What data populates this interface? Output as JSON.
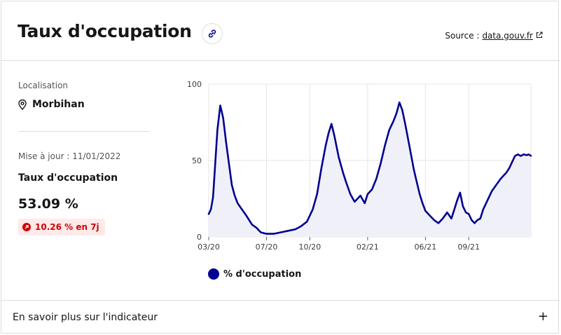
{
  "header": {
    "title": "Taux d'occupation",
    "source_prefix": "Source :",
    "source_link": "data.gouv.fr"
  },
  "location": {
    "label": "Localisation",
    "value": "Morbihan"
  },
  "update": "Mise à jour : 11/01/2022",
  "metric": {
    "name": "Taux d'occupation",
    "value": "53.09 %",
    "change": "10.26 % en 7j",
    "change_color": "#ce0500"
  },
  "footer": {
    "label": "En savoir plus sur l'indicateur",
    "toggle": "+"
  },
  "colors": {
    "line": "#000091",
    "fill": "#f0f0f8",
    "grid": "#e5e5e5"
  },
  "chart_data": {
    "type": "area",
    "xlabel": "",
    "ylabel": "",
    "ylim": [
      0,
      100
    ],
    "yticks": [
      0,
      50,
      100
    ],
    "x_tick_labels": [
      "03/20",
      "07/20",
      "10/20",
      "02/21",
      "06/21",
      "09/21"
    ],
    "x_tick_months": [
      0,
      4,
      7,
      11,
      15,
      18
    ],
    "x_range_months": [
      0,
      22.3
    ],
    "legend_position": "bottom-left",
    "grid": true,
    "series": [
      {
        "name": "% d'occupation",
        "x_months": [
          0,
          0.15,
          0.3,
          0.45,
          0.6,
          0.8,
          1.0,
          1.2,
          1.4,
          1.6,
          1.8,
          2.0,
          2.3,
          2.6,
          3.0,
          3.3,
          3.6,
          4.0,
          4.5,
          5.0,
          5.5,
          6.0,
          6.4,
          6.8,
          7.0,
          7.2,
          7.5,
          7.8,
          8.1,
          8.3,
          8.5,
          8.7,
          9.0,
          9.3,
          9.5,
          9.8,
          10.1,
          10.5,
          10.8,
          11.0,
          11.3,
          11.6,
          11.9,
          12.2,
          12.5,
          12.8,
          13.0,
          13.2,
          13.4,
          13.6,
          13.8,
          14.0,
          14.2,
          14.4,
          14.6,
          14.8,
          15.0,
          15.3,
          15.6,
          15.9,
          16.2,
          16.5,
          16.8,
          17.0,
          17.2,
          17.4,
          17.6,
          17.8,
          18.0,
          18.2,
          18.4,
          18.6,
          18.8,
          19.0,
          19.3,
          19.6,
          19.9,
          20.2,
          20.4,
          20.6,
          20.8,
          21.0,
          21.2,
          21.4,
          21.6,
          21.8,
          22.0,
          22.15,
          22.3
        ],
        "values": [
          15,
          18,
          26,
          48,
          70,
          86,
          78,
          62,
          48,
          34,
          27,
          22,
          18,
          14,
          8,
          6,
          3,
          2,
          2,
          3,
          4,
          5,
          7,
          10,
          14,
          18,
          28,
          45,
          60,
          68,
          74,
          66,
          52,
          42,
          36,
          28,
          23,
          27,
          22,
          28,
          31,
          38,
          48,
          60,
          70,
          76,
          81,
          88,
          83,
          74,
          64,
          54,
          44,
          36,
          28,
          22,
          17,
          14,
          11,
          9,
          12,
          16,
          12,
          18,
          24,
          29,
          20,
          16,
          15,
          11,
          9,
          11,
          12,
          18,
          24,
          30,
          34,
          38,
          40,
          42,
          45,
          49,
          53,
          54,
          53,
          54,
          53.5,
          54,
          53.09
        ]
      }
    ]
  }
}
